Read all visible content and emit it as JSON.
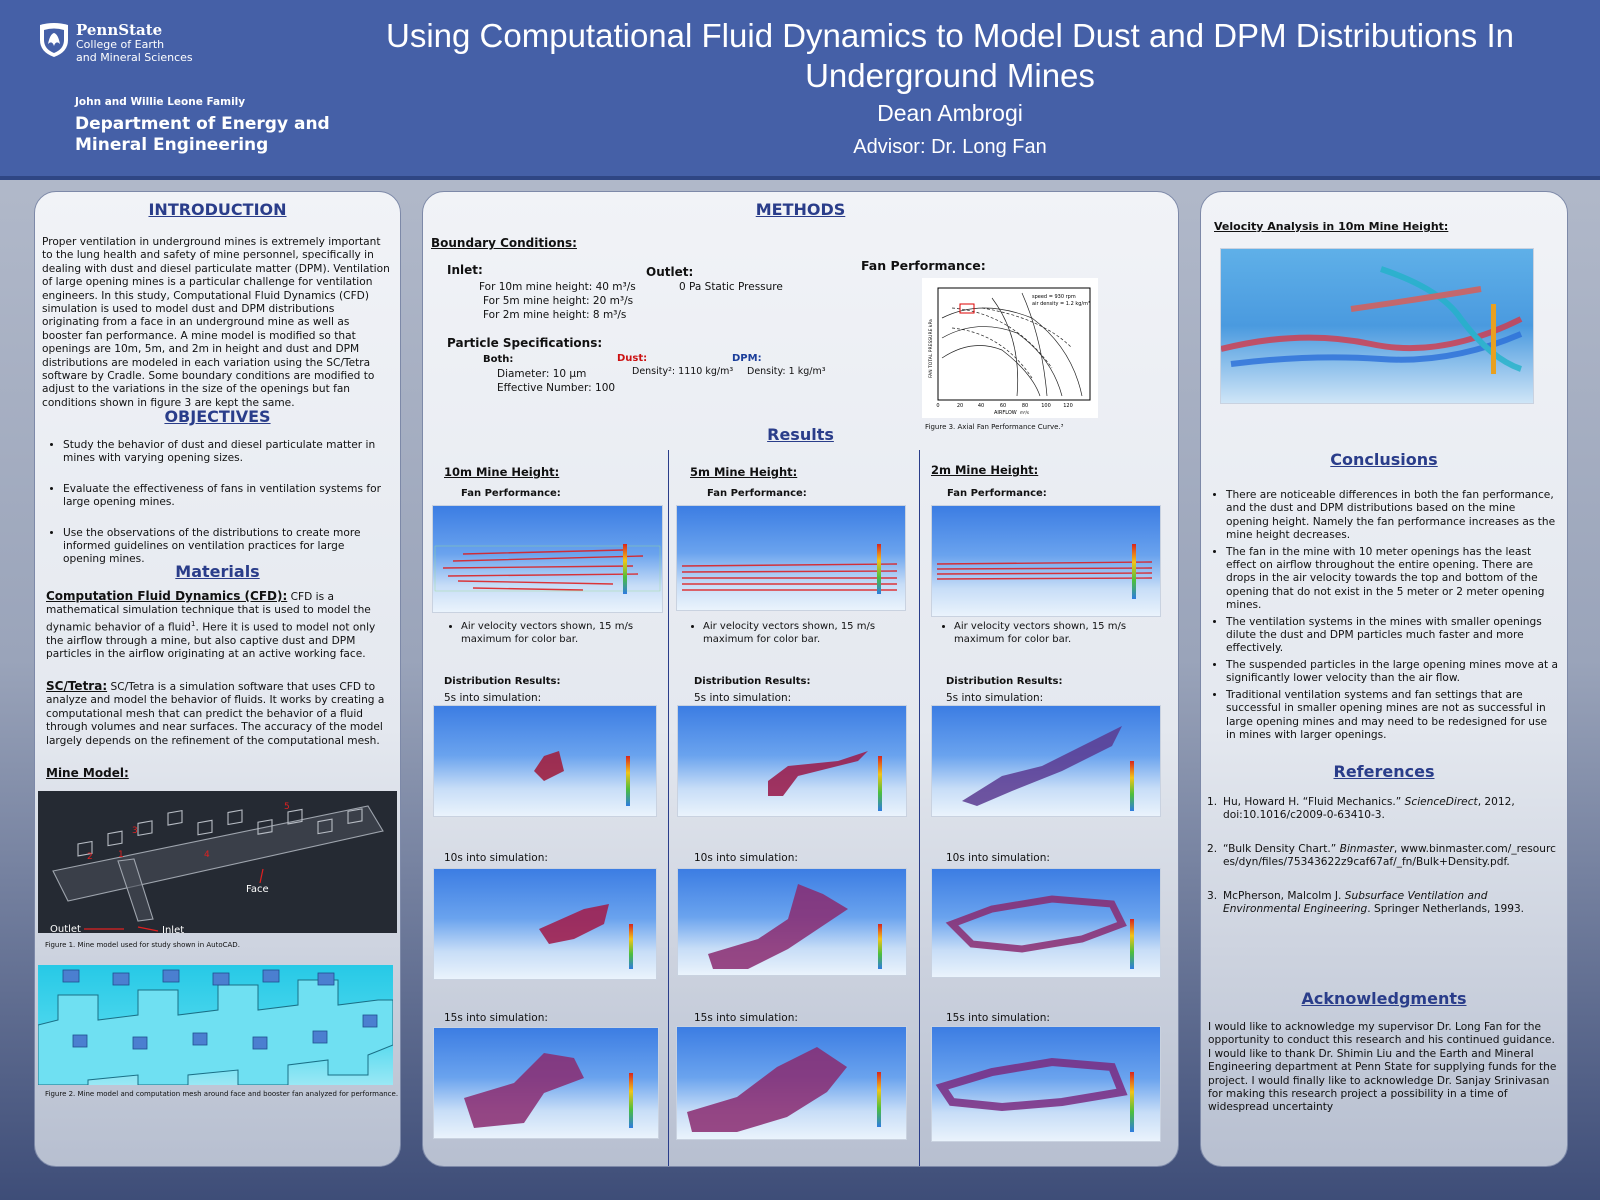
{
  "header": {
    "logo_name": "PennState",
    "logo_line1": "College of Earth",
    "logo_line2": "and Mineral Sciences",
    "dept_family": "John and Willie Leone Family",
    "dept_line1": "Department of Energy and",
    "dept_line2": "Mineral Engineering",
    "title": "Using Computational Fluid Dynamics to Model Dust and DPM Distributions In Underground Mines",
    "author": "Dean Ambrogi",
    "advisor": "Advisor: Dr. Long Fan"
  },
  "intro": {
    "heading": "INTRODUCTION",
    "body": "Proper ventilation in underground mines is extremely important to the lung health and safety of mine personnel, specifically in dealing with dust and diesel particulate matter (DPM). Ventilation of large opening mines is a particular challenge for ventilation engineers. In this study, Computational Fluid Dynamics (CFD) simulation is used to model dust and DPM distributions originating from a face in an underground mine as well as booster fan performance. A mine model is modified so that openings are 10m, 5m, and 2m in height and dust and DPM distributions are modeled in each variation using the SC/Tetra software by Cradle. Some boundary conditions are modified to adjust to the variations in the size of the openings but fan conditions shown in figure 3 are kept the same."
  },
  "objectives": {
    "heading": "OBJECTIVES",
    "items": [
      "Study the behavior of dust and diesel particulate matter in mines with varying opening sizes.",
      "Evaluate the effectiveness of fans in ventilation systems for large opening mines.",
      "Use the observations of the distributions to create more informed guidelines on ventilation practices for large opening mines."
    ]
  },
  "materials": {
    "heading": "Materials",
    "cfd_term": "Computation Fluid Dynamics (CFD):",
    "cfd_text_a": " CFD is a mathematical simulation technique that is used to model the dynamic behavior of a fluid",
    "cfd_sup": "1",
    "cfd_text_b": ". Here it is used to model not only the airflow through a mine, but also captive dust and DPM particles in the airflow originating at an active working face.",
    "sc_term": "SC/Tetra:",
    "sc_text": " SC/Tetra is a simulation software that uses CFD to analyze and model the behavior of fluids. It works by creating a computational mesh that can predict the behavior of a fluid through volumes and near surfaces. The accuracy of the model largely depends on the refinement of the computational mesh.",
    "mine_model_heading": "Mine Model:",
    "fig1_labels": {
      "face": "Face",
      "outlet": "Outlet",
      "inlet": "Inlet",
      "n1": "1",
      "n2": "2",
      "n3": "3",
      "n4": "4",
      "n5": "5"
    },
    "fig1_caption": "Figure 1. Mine model used for study shown in AutoCAD.",
    "fig2_caption": "Figure 2. Mine model and computation mesh around face and booster fan analyzed for performance."
  },
  "methods": {
    "heading": "METHODS",
    "boundary_heading": "Boundary Conditions:",
    "inlet_heading": "Inlet:",
    "inlet_lines": [
      "For 10m mine height: 40 m³/s",
      "For 5m mine height: 20 m³/s",
      "For 2m mine height: 8 m³/s"
    ],
    "outlet_heading": "Outlet:",
    "outlet_value": "0 Pa Static Pressure",
    "particle_heading": "Particle Specifications:",
    "both_label": "Both:",
    "both_lines": [
      "Diameter: 10 μm",
      "Effective Number: 100"
    ],
    "dust_label": "Dust:",
    "dust_value": "Density²: 1110 kg/m³",
    "dpm_label": "DPM:",
    "dpm_value": "Density: 1 kg/m³",
    "fan_heading": "Fan Performance:",
    "fan_caption": "Figure 3. Axial Fan Performance Curve.³",
    "fan_chart": {
      "xlabel": "AIRFLOW",
      "xunit": "m³/s",
      "ylabel": "FAN TOTAL PRESSURE  kPa",
      "xticks": [
        "0",
        "20",
        "40",
        "60",
        "80",
        "100",
        "120"
      ],
      "note1": "speed = 930 rpm",
      "note2": "air density = 1.2 kg/m³"
    }
  },
  "results": {
    "heading": "Results",
    "columns": [
      {
        "title": "10m Mine Height:",
        "fan_label": "Fan Performance:",
        "bullet": "Air velocity vectors shown, 15 m/s maximum for color bar.",
        "dist_label": "Distribution Results:",
        "t5": "5s into simulation:",
        "t10": "10s into simulation:",
        "t15": "15s into simulation:"
      },
      {
        "title": "5m Mine Height:",
        "fan_label": "Fan Performance:",
        "bullet": "Air velocity vectors shown, 15 m/s maximum for color bar.",
        "dist_label": "Distribution Results:",
        "t5": "5s into simulation:",
        "t10": "10s into simulation:",
        "t15": "15s into simulation:"
      },
      {
        "title": "2m Mine Height:",
        "fan_label": "Fan Performance:",
        "bullet": "Air velocity vectors shown, 15 m/s maximum for color bar.",
        "dist_label": "Distribution Results:",
        "t5": "5s into simulation:",
        "t10": "10s into simulation:",
        "t15": "15s into simulation:"
      }
    ]
  },
  "right": {
    "velocity_heading": "Velocity Analysis in 10m Mine Height:",
    "conclusions_heading": "Conclusions",
    "conclusions": [
      "There are noticeable differences in both the fan performance, and the dust and DPM distributions based on the mine opening height. Namely the fan performance increases as the mine height decreases.",
      "The fan in the mine with 10 meter openings has the least effect on airflow throughout the entire opening. There are drops in the air velocity towards the top and bottom of the opening that do not exist in the 5 meter or 2 meter opening mines.",
      "The ventilation systems in the mines with smaller openings dilute the dust and DPM particles much faster and more effectively.",
      "The suspended particles in the large opening mines move at a significantly lower velocity than the air flow.",
      "Traditional ventilation systems and fan settings that are successful in smaller opening mines are not as successful in large opening mines and may need to be redesigned for use in mines with larger openings."
    ],
    "references_heading": "References",
    "references": [
      {
        "num": "1.",
        "a": "Hu, Howard H. “Fluid Mechanics.” ",
        "i": "ScienceDirect",
        "b": ", 2012, doi:10.1016/c2009-0-63410-3."
      },
      {
        "num": "2.",
        "a": "“Bulk Density Chart.” ",
        "i": "Binmaster",
        "b": ", www.binmaster.com/_resources/dyn/files/75343622z9caf67af/_fn/Bulk+Density.pdf."
      },
      {
        "num": "3.",
        "a": "McPherson, Malcolm J. ",
        "i": "Subsurface Ventilation and Environmental Engineering",
        "b": ". Springer Netherlands, 1993."
      }
    ],
    "ack_heading": "Acknowledgments",
    "ack_text": "I would like to acknowledge my supervisor Dr. Long Fan for the opportunity to conduct this research and his continued guidance. I would like to thank Dr. Shimin Liu and the Earth and Mineral Engineering department at Penn State for supplying funds for the project. I would finally like to acknowledge Dr. Sanjay Srinivasan for making this research project a possibility in a time of widespread uncertainty"
  },
  "colors": {
    "header_bg": "#4560a7",
    "heading_blue": "#2a3d8a",
    "dust_red": "#cc1111",
    "dpm_blue": "#1a3d9a"
  }
}
